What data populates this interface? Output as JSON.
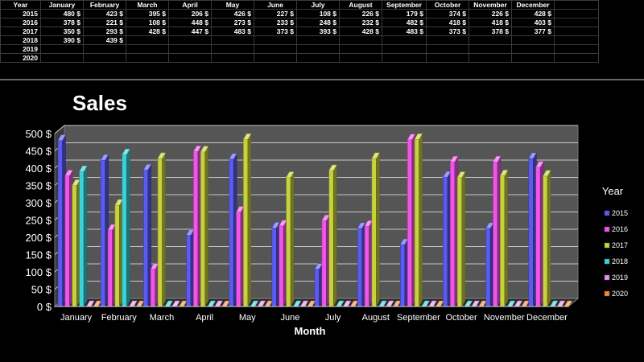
{
  "sheet": {
    "header": [
      "Year",
      "January",
      "February",
      "March",
      "April",
      "May",
      "June",
      "July",
      "August",
      "September",
      "October",
      "November",
      "December"
    ],
    "rows": [
      {
        "year": "2015",
        "cells": [
          "480 $",
          "423 $",
          "395 $",
          "206 $",
          "426 $",
          "227 $",
          "108 $",
          "226 $",
          "179 $",
          "374 $",
          "226 $",
          "428 $"
        ]
      },
      {
        "year": "2016",
        "cells": [
          "378 $",
          "221 $",
          "108 $",
          "448 $",
          "273 $",
          "233 $",
          "248 $",
          "232 $",
          "482 $",
          "418 $",
          "418 $",
          "403 $"
        ]
      },
      {
        "year": "2017",
        "cells": [
          "350 $",
          "293 $",
          "428 $",
          "447 $",
          "483 $",
          "373 $",
          "393 $",
          "428 $",
          "483 $",
          "373 $",
          "378 $",
          "377 $"
        ]
      },
      {
        "year": "2018",
        "cells": [
          "390 $",
          "439 $",
          "",
          "",
          "",
          "",
          "",
          "",
          "",
          "",
          "",
          ""
        ]
      },
      {
        "year": "2019",
        "cells": [
          "",
          "",
          "",
          "",
          "",
          "",
          "",
          "",
          "",
          "",
          "",
          ""
        ]
      },
      {
        "year": "2020",
        "cells": [
          "",
          "",
          "",
          "",
          "",
          "",
          "",
          "",
          "",
          "",
          "",
          ""
        ]
      }
    ]
  },
  "chart_data": {
    "type": "bar",
    "title": "Sales",
    "xlabel": "Month",
    "ylabel": "",
    "legend_title": "Year",
    "legend_position": "right",
    "grid": true,
    "ylim": [
      0,
      500
    ],
    "yticks": [
      "0 $",
      "50 $",
      "100 $",
      "150 $",
      "200 $",
      "250 $",
      "300 $",
      "350 $",
      "400 $",
      "450 $",
      "500 $"
    ],
    "categories": [
      "January",
      "February",
      "March",
      "April",
      "May",
      "June",
      "July",
      "August",
      "September",
      "October",
      "November",
      "December"
    ],
    "series": [
      {
        "name": "2015",
        "color": "#5b5bf0",
        "values": [
          480,
          423,
          395,
          206,
          426,
          227,
          108,
          226,
          179,
          374,
          226,
          428
        ]
      },
      {
        "name": "2016",
        "color": "#f055e8",
        "values": [
          378,
          221,
          108,
          448,
          273,
          233,
          248,
          232,
          482,
          418,
          418,
          403
        ]
      },
      {
        "name": "2017",
        "color": "#c8d23c",
        "values": [
          350,
          293,
          428,
          447,
          483,
          373,
          393,
          428,
          483,
          373,
          378,
          377
        ]
      },
      {
        "name": "2018",
        "color": "#3cd2d7",
        "values": [
          390,
          439,
          null,
          null,
          null,
          null,
          null,
          null,
          null,
          null,
          null,
          null
        ]
      },
      {
        "name": "2019",
        "color": "#e690f0",
        "values": [
          null,
          null,
          null,
          null,
          null,
          null,
          null,
          null,
          null,
          null,
          null,
          null
        ]
      },
      {
        "name": "2020",
        "color": "#f08a3c",
        "values": [
          null,
          null,
          null,
          null,
          null,
          null,
          null,
          null,
          null,
          null,
          null,
          null
        ]
      }
    ]
  }
}
